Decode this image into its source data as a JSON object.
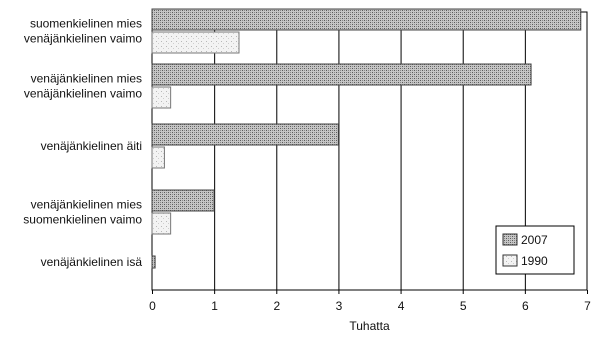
{
  "chart_data": {
    "type": "bar",
    "orientation": "horizontal",
    "categories": [
      [
        "suomenkielinen mies",
        "venäjänkielinen vaimo"
      ],
      [
        "venäjänkielinen mies",
        "venäjänkielinen vaimo"
      ],
      [
        "venäjänkielinen äiti"
      ],
      [
        "venäjänkielinen mies",
        "suomenkielinen vaimo"
      ],
      [
        "venäjänkielinen isä"
      ]
    ],
    "series": [
      {
        "name": "2007",
        "values": [
          6.9,
          6.1,
          3.0,
          1.0,
          0.05
        ],
        "color": "#9a9a9a",
        "pattern": "dense-stipple"
      },
      {
        "name": "1990",
        "values": [
          1.4,
          0.3,
          0.2,
          0.3,
          null
        ],
        "color": "#d8d8d8",
        "pattern": "light-stipple"
      }
    ],
    "xlabel": "Tuhatta",
    "xlim": [
      0,
      7
    ],
    "xticks": [
      "0",
      "1",
      "2",
      "3",
      "4",
      "5",
      "6",
      "7"
    ],
    "grid": "vertical",
    "legend": {
      "position": "bottom-right",
      "entries": [
        "2007",
        "1990"
      ]
    }
  }
}
